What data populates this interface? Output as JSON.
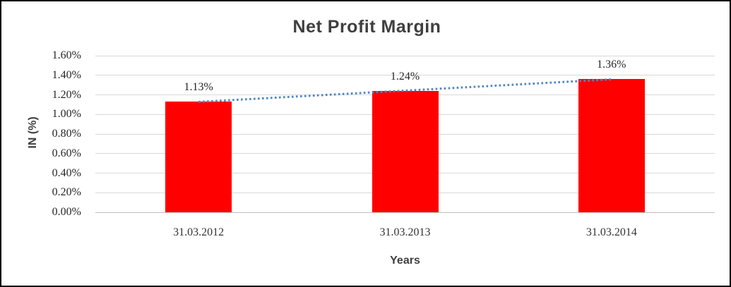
{
  "frame": {
    "background_color": "#ffffff",
    "border_color": "#000000"
  },
  "chart_data": {
    "type": "bar",
    "title": "Net Profit Margin",
    "xlabel": "Years",
    "ylabel": "IN (%)",
    "categories": [
      "31.03.2012",
      "31.03.2013",
      "31.03.2014"
    ],
    "values": [
      1.13,
      1.24,
      1.36
    ],
    "data_labels": [
      "1.13%",
      "1.24%",
      "1.36%"
    ],
    "ylim": [
      0,
      1.6
    ],
    "ytick_step": 0.2,
    "ytick_labels": [
      "0.00%",
      "0.20%",
      "0.40%",
      "0.60%",
      "0.80%",
      "1.00%",
      "1.20%",
      "1.40%",
      "1.60%"
    ],
    "grid": true,
    "legend": "none",
    "bar_color": "#ff0000",
    "gridline_color": "#d9d9d9",
    "axis_line_color": "#bfbfbf",
    "trendline": {
      "type": "linear",
      "style": "dotted",
      "color": "#4e86c4"
    },
    "title_color": "#3f3f3f",
    "tick_label_color": "#262626"
  }
}
